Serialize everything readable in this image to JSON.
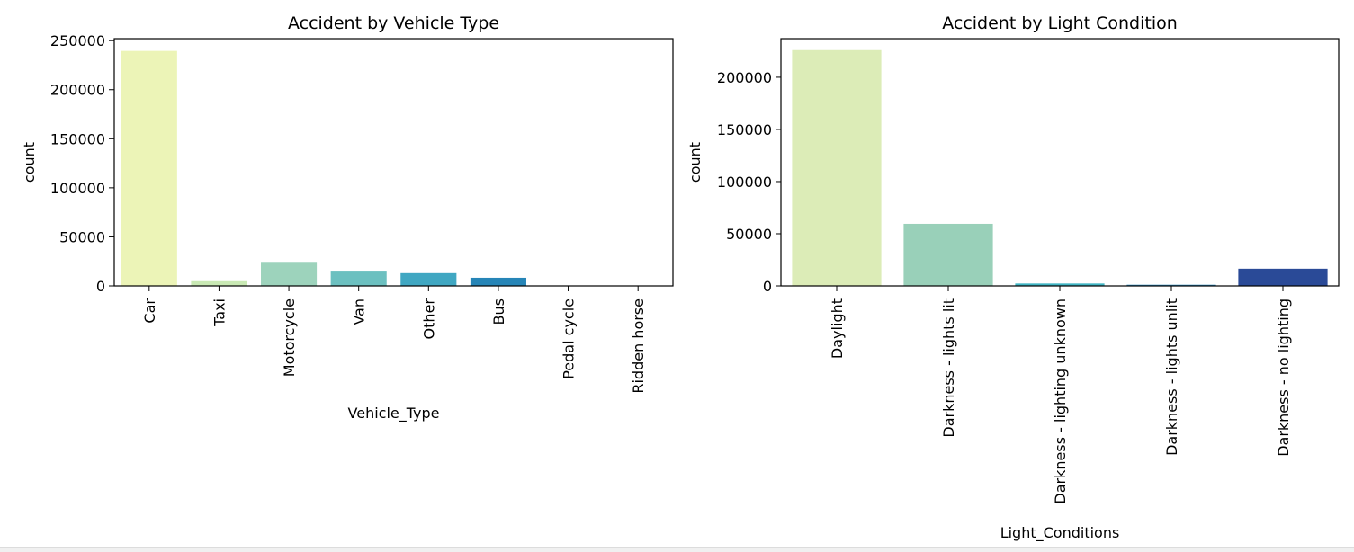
{
  "chart_data": [
    {
      "type": "bar",
      "title": "Accident by Vehicle Type",
      "xlabel": "Vehicle_Type",
      "ylabel": "count",
      "ylim": [
        0,
        252000
      ],
      "yticks": [
        0,
        50000,
        100000,
        150000,
        200000,
        250000
      ],
      "categories": [
        "Car",
        "Taxi",
        "Motorcycle",
        "Van",
        "Other",
        "Bus",
        "Pedal cycle",
        "Ridden horse"
      ],
      "values": [
        239500,
        4800,
        24500,
        15500,
        13000,
        8300,
        200,
        50
      ],
      "colors": [
        "#ecf4b7",
        "#c9e9b4",
        "#9dd3bc",
        "#6cc0c0",
        "#40a7c2",
        "#2685b7",
        "#2761a5",
        "#233f91"
      ]
    },
    {
      "type": "bar",
      "title": "Accident by Light Condition",
      "xlabel": "Light_Conditions",
      "ylabel": "count",
      "ylim": [
        0,
        237000
      ],
      "yticks": [
        0,
        50000,
        100000,
        150000,
        200000
      ],
      "categories": [
        "Daylight",
        "Darkness - lights lit",
        "Darkness - lighting unknown",
        "Darkness - lights unlit",
        "Darkness - no lighting"
      ],
      "values": [
        226000,
        59500,
        2300,
        1100,
        16500
      ],
      "colors": [
        "#dcecb7",
        "#99d0b9",
        "#41b6c4",
        "#2b88bb",
        "#2a4a97"
      ]
    }
  ]
}
